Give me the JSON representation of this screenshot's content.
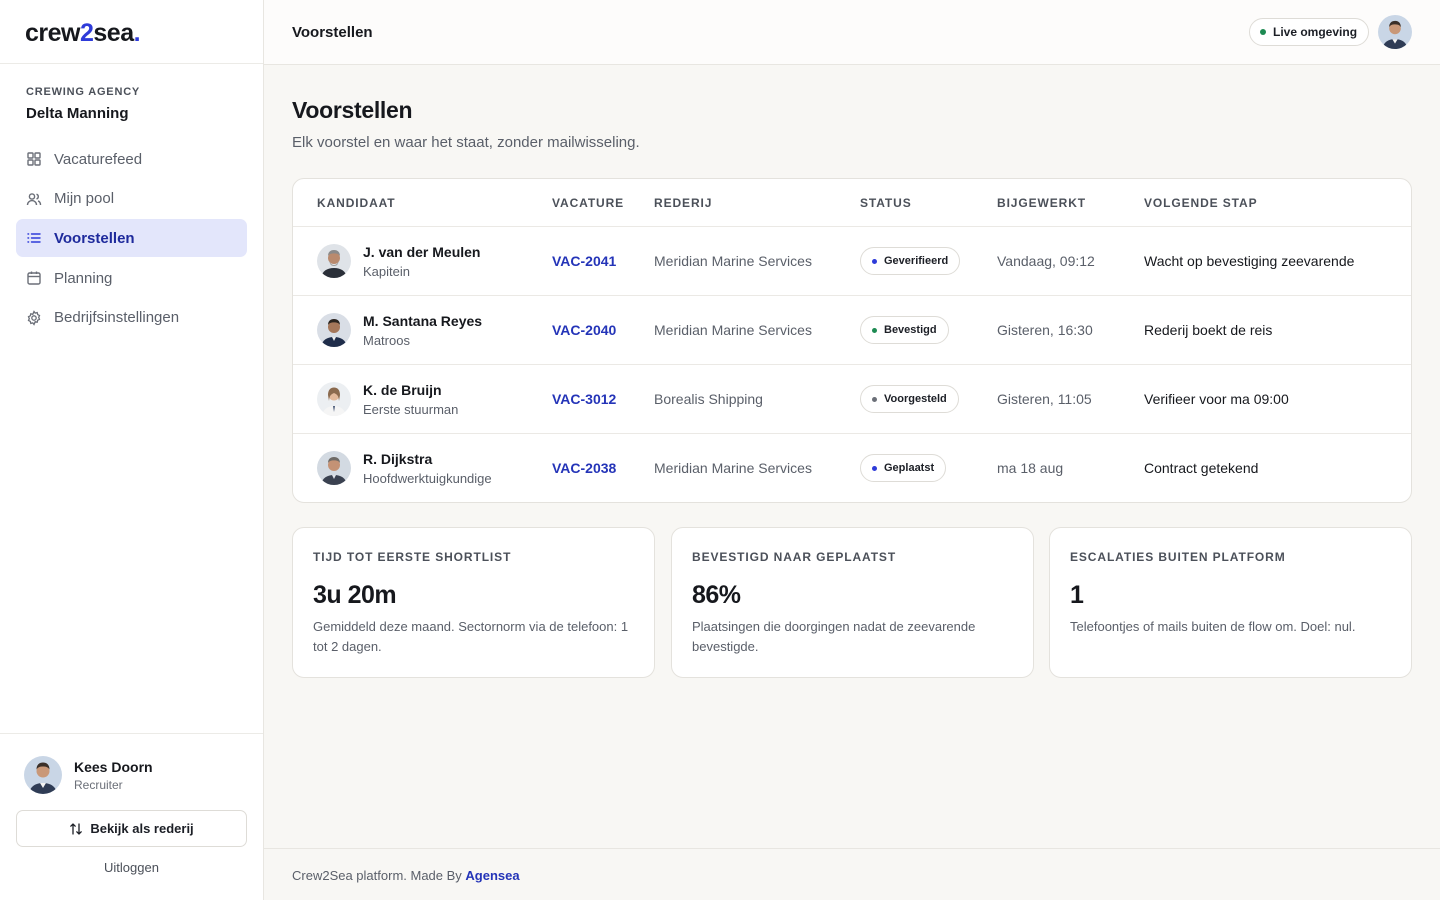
{
  "brand": {
    "logo_a": "crew",
    "logo_b": "2",
    "logo_c": "sea",
    "logo_dot": "."
  },
  "agency": {
    "label": "CREWING AGENCY",
    "name": "Delta Manning"
  },
  "nav": [
    {
      "label": "Vacaturefeed",
      "icon": "grid-icon"
    },
    {
      "label": "Mijn pool",
      "icon": "users-icon"
    },
    {
      "label": "Voorstellen",
      "icon": "list-icon",
      "active": true
    },
    {
      "label": "Planning",
      "icon": "calendar-icon"
    },
    {
      "label": "Bedrijfsinstellingen",
      "icon": "gear-icon"
    }
  ],
  "user": {
    "name": "Kees Doorn",
    "role": "Recruiter"
  },
  "switch_button": "Bekijk als rederij",
  "logout": "Uitloggen",
  "header": {
    "title": "Voorstellen",
    "env_badge": "Live omgeving"
  },
  "page": {
    "title": "Voorstellen",
    "subtitle": "Elk voorstel en waar het staat, zonder mailwisseling."
  },
  "table": {
    "columns": [
      "KANDIDAAT",
      "VACATURE",
      "REDERIJ",
      "STATUS",
      "BIJGEWERKT",
      "VOLGENDE STAP"
    ],
    "rows": [
      {
        "name": "J. van der Meulen",
        "role": "Kapitein",
        "vacancy": "VAC-2041",
        "company": "Meridian Marine Services",
        "status": "Geverifieerd",
        "status_color": "#2e3bd9",
        "updated": "Vandaag, 09:12",
        "next": "Wacht op bevestiging zeevarende"
      },
      {
        "name": "M. Santana Reyes",
        "role": "Matroos",
        "vacancy": "VAC-2040",
        "company": "Meridian Marine Services",
        "status": "Bevestigd",
        "status_color": "#1d8a52",
        "updated": "Gisteren, 16:30",
        "next": "Rederij boekt de reis"
      },
      {
        "name": "K. de Bruijn",
        "role": "Eerste stuurman",
        "vacancy": "VAC-3012",
        "company": "Borealis Shipping",
        "status": "Voorgesteld",
        "status_color": "#6b6f78",
        "updated": "Gisteren, 11:05",
        "next": "Verifieer voor ma 09:00"
      },
      {
        "name": "R. Dijkstra",
        "role": "Hoofdwerktuigkundige",
        "vacancy": "VAC-2038",
        "company": "Meridian Marine Services",
        "status": "Geplaatst",
        "status_color": "#2e3bd9",
        "updated": "ma 18 aug",
        "next": "Contract getekend"
      }
    ]
  },
  "stats": [
    {
      "label": "TIJD TOT EERSTE SHORTLIST",
      "value": "3u 20m",
      "desc": "Gemiddeld deze maand. Sectornorm via de telefoon: 1 tot 2 dagen."
    },
    {
      "label": "BEVESTIGD NAAR GEPLAATST",
      "value": "86%",
      "desc": "Plaatsingen die doorgingen nadat de zeevarende bevestigde."
    },
    {
      "label": "ESCALATIES BUITEN PLATFORM",
      "value": "1",
      "desc": "Telefoontjes of mails buiten de flow om. Doel: nul."
    }
  ],
  "footer": {
    "text": "Crew2Sea platform. Made By ",
    "link": "Agensea"
  }
}
